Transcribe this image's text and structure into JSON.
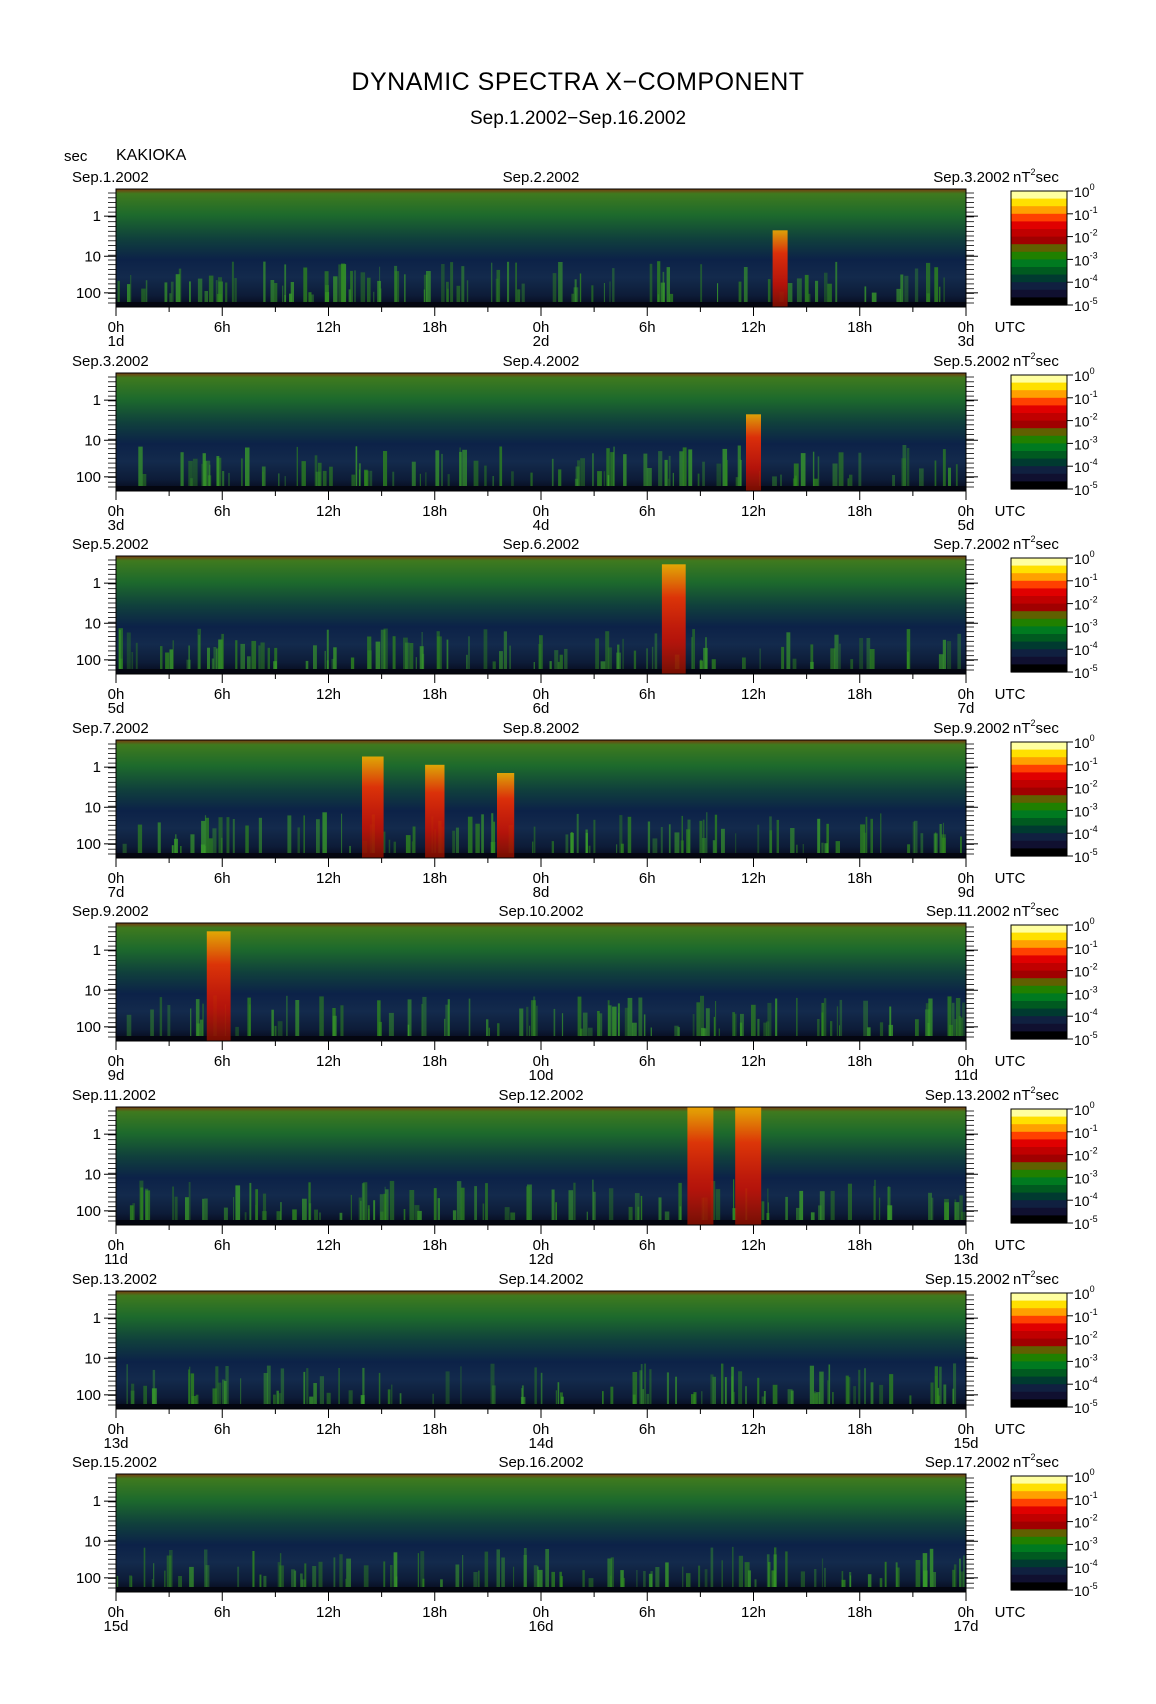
{
  "title": "DYNAMIC SPECTRA X−COMPONENT",
  "subtitle": "Sep.1.2002−Sep.16.2002",
  "header": {
    "y_unit": "sec",
    "station": "KAKIOKA"
  },
  "colorbar": {
    "unit": "nT",
    "unit_exponent": "2",
    "unit_suffix": "sec",
    "tick_base": "10",
    "tick_exponents": [
      "0",
      "-1",
      "-2",
      "-3",
      "-4",
      "-5"
    ],
    "colors": [
      "#ffffa0",
      "#ffe000",
      "#ffa000",
      "#ff4000",
      "#e00000",
      "#c00000",
      "#a00000",
      "#606000",
      "#208000",
      "#007a20",
      "#005a20",
      "#003a30",
      "#102040",
      "#101030",
      "#000000"
    ]
  },
  "chart_data": [
    {
      "type": "heatmap",
      "start_date": "Sep.1.2002",
      "mid_date": "Sep.2.2002",
      "end_date": "Sep.3.2002",
      "day_labels": [
        "1d",
        "2d",
        "3d"
      ],
      "ylabel": "sec",
      "y_ticks": [
        "1",
        "10",
        "100"
      ],
      "x_ticks": [
        "0h",
        "6h",
        "12h",
        "18h",
        "0h",
        "6h",
        "12h",
        "18h",
        "0h"
      ],
      "x_unit": "UTC",
      "zlabel": "nT²sec",
      "zlim": [
        1e-05,
        1
      ],
      "zscale": "log",
      "events": [
        {
          "t_hours": 37.5,
          "intensity": 0.5
        }
      ]
    },
    {
      "type": "heatmap",
      "start_date": "Sep.3.2002",
      "mid_date": "Sep.4.2002",
      "end_date": "Sep.5.2002",
      "day_labels": [
        "3d",
        "4d",
        "5d"
      ],
      "ylabel": "sec",
      "y_ticks": [
        "1",
        "10",
        "100"
      ],
      "x_ticks": [
        "0h",
        "6h",
        "12h",
        "18h",
        "0h",
        "6h",
        "12h",
        "18h",
        "0h"
      ],
      "x_unit": "UTC",
      "zlabel": "nT²sec",
      "zlim": [
        1e-05,
        1
      ],
      "zscale": "log",
      "events": [
        {
          "t_hours": 36.0,
          "intensity": 0.5
        }
      ]
    },
    {
      "type": "heatmap",
      "start_date": "Sep.5.2002",
      "mid_date": "Sep.6.2002",
      "end_date": "Sep.7.2002",
      "day_labels": [
        "5d",
        "6d",
        "7d"
      ],
      "ylabel": "sec",
      "y_ticks": [
        "1",
        "10",
        "100"
      ],
      "x_ticks": [
        "0h",
        "6h",
        "12h",
        "18h",
        "0h",
        "6h",
        "12h",
        "18h",
        "0h"
      ],
      "x_unit": "UTC",
      "zlabel": "nT²sec",
      "zlim": [
        1e-05,
        1
      ],
      "zscale": "log",
      "events": [
        {
          "t_hours": 31.5,
          "intensity": 0.9
        }
      ]
    },
    {
      "type": "heatmap",
      "start_date": "Sep.7.2002",
      "mid_date": "Sep.8.2002",
      "end_date": "Sep.9.2002",
      "day_labels": [
        "7d",
        "8d",
        "9d"
      ],
      "ylabel": "sec",
      "y_ticks": [
        "1",
        "10",
        "100"
      ],
      "x_ticks": [
        "0h",
        "6h",
        "12h",
        "18h",
        "0h",
        "6h",
        "12h",
        "18h",
        "0h"
      ],
      "x_unit": "UTC",
      "zlabel": "nT²sec",
      "zlim": [
        1e-05,
        1
      ],
      "zscale": "log",
      "events": [
        {
          "t_hours": 14.5,
          "intensity": 0.8
        },
        {
          "t_hours": 18.0,
          "intensity": 0.7
        },
        {
          "t_hours": 22.0,
          "intensity": 0.6
        }
      ]
    },
    {
      "type": "heatmap",
      "start_date": "Sep.9.2002",
      "mid_date": "Sep.10.2002",
      "end_date": "Sep.11.2002",
      "day_labels": [
        "9d",
        "10d",
        "11d"
      ],
      "ylabel": "sec",
      "y_ticks": [
        "1",
        "10",
        "100"
      ],
      "x_ticks": [
        "0h",
        "6h",
        "12h",
        "18h",
        "0h",
        "6h",
        "12h",
        "18h",
        "0h"
      ],
      "x_unit": "UTC",
      "zlabel": "nT²sec",
      "zlim": [
        1e-05,
        1
      ],
      "zscale": "log",
      "events": [
        {
          "t_hours": 5.8,
          "intensity": 0.9
        }
      ]
    },
    {
      "type": "heatmap",
      "start_date": "Sep.11.2002",
      "mid_date": "Sep.12.2002",
      "end_date": "Sep.13.2002",
      "day_labels": [
        "11d",
        "12d",
        "13d"
      ],
      "ylabel": "sec",
      "y_ticks": [
        "1",
        "10",
        "100"
      ],
      "x_ticks": [
        "0h",
        "6h",
        "12h",
        "18h",
        "0h",
        "6h",
        "12h",
        "18h",
        "0h"
      ],
      "x_unit": "UTC",
      "zlabel": "nT²sec",
      "zlim": [
        1e-05,
        1
      ],
      "zscale": "log",
      "events": [
        {
          "t_hours": 33.0,
          "intensity": 1.0
        },
        {
          "t_hours": 35.7,
          "intensity": 1.0
        }
      ]
    },
    {
      "type": "heatmap",
      "start_date": "Sep.13.2002",
      "mid_date": "Sep.14.2002",
      "end_date": "Sep.15.2002",
      "day_labels": [
        "13d",
        "14d",
        "15d"
      ],
      "ylabel": "sec",
      "y_ticks": [
        "1",
        "10",
        "100"
      ],
      "x_ticks": [
        "0h",
        "6h",
        "12h",
        "18h",
        "0h",
        "6h",
        "12h",
        "18h",
        "0h"
      ],
      "x_unit": "UTC",
      "zlabel": "nT²sec",
      "zlim": [
        1e-05,
        1
      ],
      "zscale": "log",
      "events": []
    },
    {
      "type": "heatmap",
      "start_date": "Sep.15.2002",
      "mid_date": "Sep.16.2002",
      "end_date": "Sep.17.2002",
      "day_labels": [
        "15d",
        "16d",
        "17d"
      ],
      "ylabel": "sec",
      "y_ticks": [
        "1",
        "10",
        "100"
      ],
      "x_ticks": [
        "0h",
        "6h",
        "12h",
        "18h",
        "0h",
        "6h",
        "12h",
        "18h",
        "0h"
      ],
      "x_unit": "UTC",
      "zlabel": "nT²sec",
      "zlim": [
        1e-05,
        1
      ],
      "zscale": "log",
      "events": []
    }
  ]
}
